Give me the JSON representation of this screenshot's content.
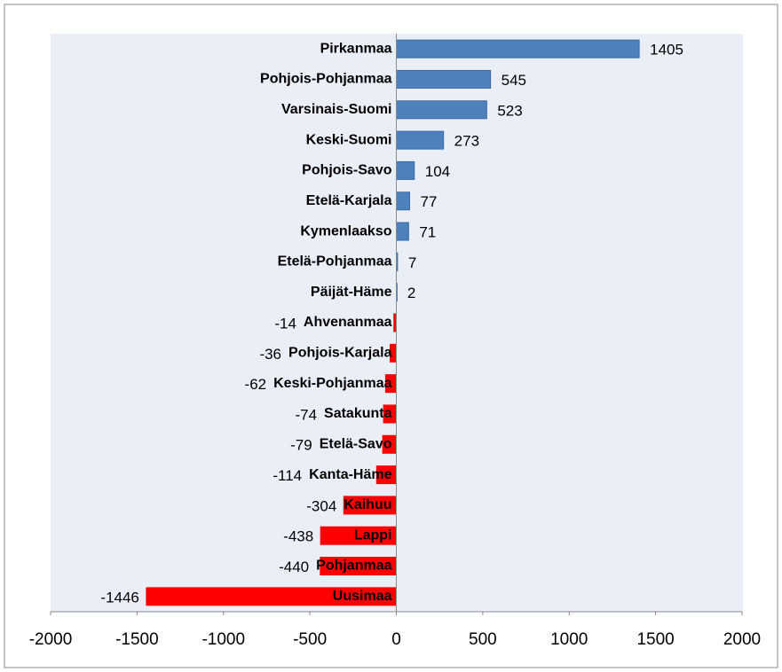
{
  "chart_data": {
    "type": "bar",
    "orientation": "horizontal",
    "categories": [
      "Pirkanmaa",
      "Pohjois-Pohjanmaa",
      "Varsinais-Suomi",
      "Keski-Suomi",
      "Pohjois-Savo",
      "Etelä-Karjala",
      "Kymenlaakso",
      "Etelä-Pohjanmaa",
      "Päijät-Häme",
      "Ahvenanmaa",
      "Pohjois-Karjala",
      "Keski-Pohjanmaa",
      "Satakunta",
      "Etelä-Savo",
      "Kanta-Häme",
      "Kaihuu",
      "Lappi",
      "Pohjanmaa",
      "Uusimaa"
    ],
    "values": [
      1405,
      545,
      523,
      273,
      104,
      77,
      71,
      7,
      2,
      -14,
      -36,
      -62,
      -74,
      -79,
      -114,
      -304,
      -438,
      -440,
      -1446
    ],
    "color": "#4f81bd",
    "negative_color": "#ff0000",
    "xlim": [
      -2000,
      2000
    ],
    "xticks": [
      -2000,
      -1500,
      -1000,
      -500,
      0,
      500,
      1000,
      1500,
      2000
    ]
  }
}
